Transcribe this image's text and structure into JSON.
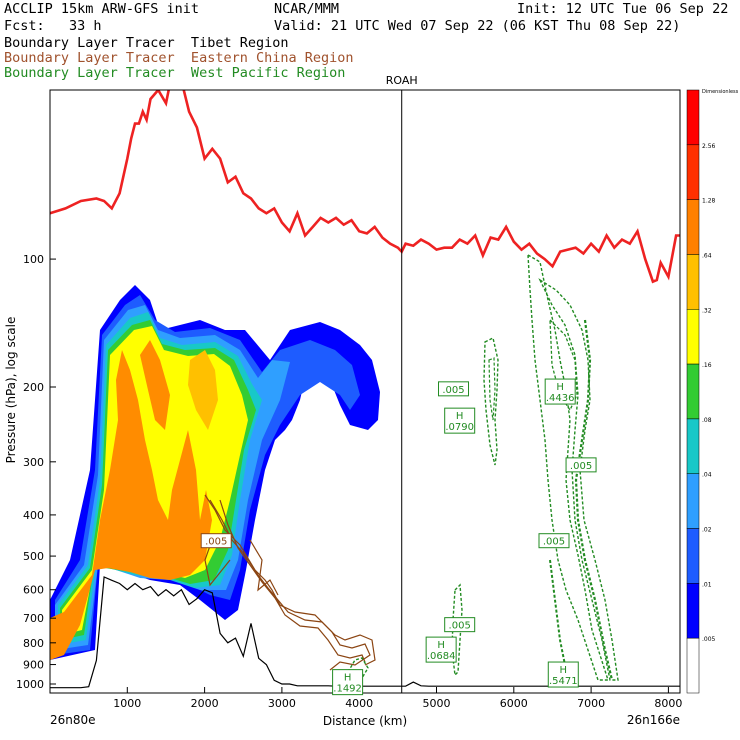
{
  "header": {
    "model": "ACCLIP 15km ARW-GFS init",
    "org": "NCAR/MMM",
    "init": "Init: 12 UTC Tue 06 Sep 22",
    "fcst": "Fcst:   33 h",
    "valid": "Valid: 21 UTC Wed 07 Sep 22 (06 KST Thu 08 Sep 22)"
  },
  "legend": [
    {
      "label": "Boundary Layer Tracer  Tibet Region",
      "color": "#000000"
    },
    {
      "label": "Boundary Layer Tracer  Eastern China Region",
      "color": "#8b4513"
    },
    {
      "label": "Boundary Layer Tracer  West Pacific Region",
      "color": "#228b22"
    }
  ],
  "chart_data": {
    "type": "cross-section",
    "xlabel": "Distance (km)",
    "ylabel": "Pressure (hPa), log scale",
    "xlim": [
      0,
      8150
    ],
    "ylim_hpa": [
      1050,
      40
    ],
    "x_ticks": [
      {
        "v": 1000,
        "l": "1000"
      },
      {
        "v": 2000,
        "l": "2000"
      },
      {
        "v": 3000,
        "l": "3000"
      },
      {
        "v": 4000,
        "l": "4000"
      },
      {
        "v": 5000,
        "l": "5000"
      },
      {
        "v": 6000,
        "l": "6000"
      },
      {
        "v": 7000,
        "l": "7000"
      },
      {
        "v": 8000,
        "l": "8000"
      }
    ],
    "y_ticks": [
      {
        "v": 100,
        "l": "100"
      },
      {
        "v": 200,
        "l": "200"
      },
      {
        "v": 300,
        "l": "300"
      },
      {
        "v": 400,
        "l": "400"
      },
      {
        "v": 500,
        "l": "500"
      },
      {
        "v": 600,
        "l": "600"
      },
      {
        "v": 700,
        "l": "700"
      },
      {
        "v": 800,
        "l": "800"
      },
      {
        "v": 900,
        "l": "900"
      },
      {
        "v": 1000,
        "l": "1000"
      }
    ],
    "left_endpoint": "26n80e",
    "right_endpoint": "26n166e",
    "marker": {
      "label": "ROAH",
      "x": 4550
    },
    "colorbar": {
      "title": "Dimensionless",
      "levels": [
        ".005",
        ".01",
        ".02",
        ".04",
        ".08",
        ".16",
        ".32",
        ".64",
        "1.28",
        "2.56"
      ],
      "colors": [
        "#ffffff",
        "#0000ff",
        "#1e5cff",
        "#2f9fff",
        "#18c8c8",
        "#33cc33",
        "#ffff00",
        "#ffc000",
        "#ff8000",
        "#ff3000",
        "#ff0000"
      ]
    },
    "tropopause_line": {
      "color": "#ee2222",
      "x": [
        0,
        200,
        400,
        600,
        700,
        800,
        900,
        1000,
        1050,
        1100,
        1150,
        1200,
        1250,
        1300,
        1400,
        1500,
        1600,
        1700,
        1800,
        1900,
        2000,
        2100,
        2200,
        2300,
        2400,
        2500,
        2600,
        2700,
        2800,
        2900,
        3000,
        3100,
        3200,
        3300,
        3400,
        3500,
        3600,
        3700,
        3800,
        3900,
        4000,
        4100,
        4200,
        4300,
        4400,
        4500,
        4550,
        4600,
        4700,
        4800,
        4900,
        5000,
        5100,
        5200,
        5300,
        5400,
        5500,
        5600,
        5700,
        5800,
        5900,
        6000,
        6100,
        6200,
        6300,
        6400,
        6500,
        6600,
        6700,
        6800,
        6900,
        7000,
        7100,
        7200,
        7300,
        7400,
        7500,
        7600,
        7700,
        7800,
        7850,
        7900,
        8000,
        8100,
        8150
      ],
      "p": [
        78,
        76,
        73,
        72,
        73,
        76,
        70,
        58,
        52,
        48,
        48,
        45,
        47,
        42,
        40,
        43,
        35,
        38,
        45,
        49,
        58,
        55,
        58,
        66,
        64,
        70,
        72,
        76,
        78,
        76,
        82,
        86,
        78,
        88,
        84,
        80,
        82,
        80,
        83,
        81,
        86,
        87,
        84,
        89,
        92,
        94,
        96,
        92,
        93,
        90,
        92,
        95,
        94,
        94,
        90,
        92,
        88,
        98,
        89,
        90,
        84,
        91,
        95,
        92,
        97,
        100,
        104,
        96,
        95,
        94,
        97,
        92,
        96,
        88,
        94,
        90,
        92,
        86,
        100,
        113,
        112,
        102,
        110,
        88,
        88
      ]
    },
    "terrain_line": {
      "color": "#000000",
      "x": [
        0,
        100,
        200,
        300,
        400,
        500,
        600,
        700,
        800,
        900,
        1000,
        1100,
        1200,
        1300,
        1400,
        1500,
        1600,
        1700,
        1800,
        1900,
        2000,
        2100,
        2200,
        2300,
        2400,
        2500,
        2600,
        2700,
        2800,
        2900,
        3000,
        3100,
        3200,
        3300,
        3400,
        3500,
        3600,
        3700,
        3800,
        3900,
        4000,
        4100,
        4200,
        4300,
        4400,
        4500,
        4600,
        4700,
        4800,
        4900,
        5000,
        6000,
        7000,
        8000,
        8150
      ],
      "p": [
        1020,
        1020,
        1020,
        1020,
        1020,
        1015,
        880,
        560,
        570,
        580,
        600,
        580,
        600,
        590,
        620,
        600,
        620,
        600,
        650,
        630,
        600,
        610,
        760,
        800,
        780,
        860,
        720,
        870,
        900,
        980,
        1000,
        1000,
        1010,
        1010,
        1010,
        1010,
        1010,
        1012,
        1012,
        1012,
        1012,
        1012,
        1012,
        1012,
        1012,
        1012,
        1012,
        990,
        1010,
        1012,
        1012,
        1012,
        1012,
        1012,
        1012
      ]
    },
    "contour_labels": [
      {
        "text": ".005",
        "x": 2150,
        "p": 460,
        "color": "#8b4513"
      },
      {
        "text": ".005",
        "x": 5220,
        "p": 202,
        "color": "#228b22"
      },
      {
        "text": "H\n.0790",
        "x": 5300,
        "p": 240,
        "color": "#228b22"
      },
      {
        "text": "H\n.4436",
        "x": 6600,
        "p": 205,
        "color": "#228b22"
      },
      {
        "text": ".005",
        "x": 6870,
        "p": 305,
        "color": "#228b22"
      },
      {
        "text": ".005",
        "x": 6520,
        "p": 460,
        "color": "#228b22"
      },
      {
        "text": ".005",
        "x": 5300,
        "p": 725,
        "color": "#228b22"
      },
      {
        "text": "H\n.0684",
        "x": 5060,
        "p": 830,
        "color": "#228b22"
      },
      {
        "text": "H\n.5471",
        "x": 6640,
        "p": 950,
        "color": "#228b22"
      },
      {
        "text": "H\n.1492",
        "x": 3850,
        "p": 990,
        "color": "#228b22"
      }
    ]
  }
}
